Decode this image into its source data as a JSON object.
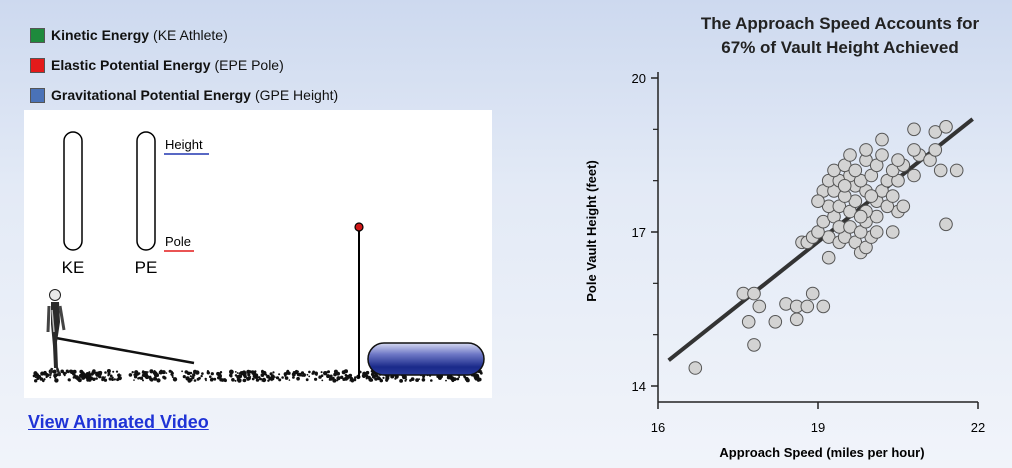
{
  "legend": {
    "items": [
      {
        "bold": "Kinetic Energy",
        "rest": "(KE Athlete)",
        "color": "#1e8a3c"
      },
      {
        "bold": "Elastic Potential Energy",
        "rest": "(EPE Pole)",
        "color": "#e41a1a"
      },
      {
        "bold": "Gravitational Potential Energy",
        "rest": "(GPE Height)",
        "color": "#4a72b8"
      }
    ]
  },
  "animation": {
    "bar_labels": {
      "ke": "KE",
      "pe": "PE"
    },
    "pe_labels": {
      "height": "Height",
      "pole": "Pole"
    },
    "height_line_color": "#2036b0",
    "pole_line_color": "#e41a1a"
  },
  "video_link": "View Animated Video",
  "chart_data": {
    "type": "scatter",
    "title_line1": "The Approach Speed Accounts for",
    "title_line2": "67% of Vault Height Achieved",
    "xlabel": "Approach Speed (miles per hour)",
    "ylabel": "Pole Vault Height (feet)",
    "xlim": [
      16,
      22
    ],
    "ylim": [
      14,
      20
    ],
    "xticks": [
      16,
      19,
      22
    ],
    "yticks": [
      14,
      17,
      20
    ],
    "minor_yticks": [
      15,
      16,
      18,
      19
    ],
    "trendline": {
      "x": [
        16.2,
        21.9
      ],
      "y": [
        14.5,
        19.2
      ]
    },
    "points": [
      {
        "x": 16.7,
        "y": 14.35
      },
      {
        "x": 17.8,
        "y": 14.8
      },
      {
        "x": 17.6,
        "y": 15.8
      },
      {
        "x": 17.8,
        "y": 15.8
      },
      {
        "x": 17.9,
        "y": 15.55
      },
      {
        "x": 17.7,
        "y": 15.25
      },
      {
        "x": 18.2,
        "y": 15.25
      },
      {
        "x": 18.4,
        "y": 15.6
      },
      {
        "x": 18.6,
        "y": 15.55
      },
      {
        "x": 18.8,
        "y": 15.55
      },
      {
        "x": 18.6,
        "y": 15.3
      },
      {
        "x": 18.9,
        "y": 15.8
      },
      {
        "x": 19.1,
        "y": 15.55
      },
      {
        "x": 18.7,
        "y": 16.8
      },
      {
        "x": 18.8,
        "y": 16.8
      },
      {
        "x": 19.2,
        "y": 16.5
      },
      {
        "x": 18.9,
        "y": 16.9
      },
      {
        "x": 19.2,
        "y": 16.9
      },
      {
        "x": 19.0,
        "y": 17.0
      },
      {
        "x": 19.1,
        "y": 17.2
      },
      {
        "x": 19.4,
        "y": 16.8
      },
      {
        "x": 19.5,
        "y": 16.9
      },
      {
        "x": 19.7,
        "y": 16.8
      },
      {
        "x": 19.8,
        "y": 16.6
      },
      {
        "x": 19.9,
        "y": 16.7
      },
      {
        "x": 20.0,
        "y": 16.9
      },
      {
        "x": 20.1,
        "y": 17.0
      },
      {
        "x": 19.3,
        "y": 17.3
      },
      {
        "x": 19.4,
        "y": 17.1
      },
      {
        "x": 19.6,
        "y": 17.1
      },
      {
        "x": 19.8,
        "y": 17.0
      },
      {
        "x": 19.9,
        "y": 17.2
      },
      {
        "x": 20.1,
        "y": 17.3
      },
      {
        "x": 20.4,
        "y": 17.0
      },
      {
        "x": 20.5,
        "y": 17.4
      },
      {
        "x": 19.2,
        "y": 17.5
      },
      {
        "x": 19.4,
        "y": 17.5
      },
      {
        "x": 19.6,
        "y": 17.4
      },
      {
        "x": 19.7,
        "y": 17.6
      },
      {
        "x": 19.9,
        "y": 17.4
      },
      {
        "x": 20.1,
        "y": 17.6
      },
      {
        "x": 20.3,
        "y": 17.5
      },
      {
        "x": 19.1,
        "y": 17.8
      },
      {
        "x": 19.3,
        "y": 17.8
      },
      {
        "x": 19.5,
        "y": 17.7
      },
      {
        "x": 19.7,
        "y": 17.9
      },
      {
        "x": 19.9,
        "y": 17.8
      },
      {
        "x": 20.2,
        "y": 17.8
      },
      {
        "x": 20.4,
        "y": 17.7
      },
      {
        "x": 20.6,
        "y": 17.5
      },
      {
        "x": 19.2,
        "y": 18.0
      },
      {
        "x": 19.4,
        "y": 18.0
      },
      {
        "x": 19.6,
        "y": 18.1
      },
      {
        "x": 19.8,
        "y": 18.0
      },
      {
        "x": 20.0,
        "y": 18.1
      },
      {
        "x": 20.3,
        "y": 18.0
      },
      {
        "x": 20.5,
        "y": 18.0
      },
      {
        "x": 20.8,
        "y": 18.1
      },
      {
        "x": 19.3,
        "y": 18.2
      },
      {
        "x": 19.5,
        "y": 18.3
      },
      {
        "x": 19.7,
        "y": 18.2
      },
      {
        "x": 19.9,
        "y": 18.4
      },
      {
        "x": 20.1,
        "y": 18.3
      },
      {
        "x": 20.4,
        "y": 18.2
      },
      {
        "x": 20.6,
        "y": 18.3
      },
      {
        "x": 19.6,
        "y": 18.5
      },
      {
        "x": 19.9,
        "y": 18.6
      },
      {
        "x": 20.2,
        "y": 18.5
      },
      {
        "x": 20.5,
        "y": 18.4
      },
      {
        "x": 20.9,
        "y": 18.5
      },
      {
        "x": 21.1,
        "y": 18.4
      },
      {
        "x": 20.2,
        "y": 18.8
      },
      {
        "x": 20.8,
        "y": 18.6
      },
      {
        "x": 21.2,
        "y": 18.6
      },
      {
        "x": 21.3,
        "y": 18.2
      },
      {
        "x": 21.6,
        "y": 18.2
      },
      {
        "x": 20.8,
        "y": 19.0
      },
      {
        "x": 21.2,
        "y": 18.95
      },
      {
        "x": 21.4,
        "y": 19.05
      },
      {
        "x": 21.4,
        "y": 17.15
      },
      {
        "x": 19.0,
        "y": 17.6
      },
      {
        "x": 19.5,
        "y": 17.9
      },
      {
        "x": 20.0,
        "y": 17.7
      },
      {
        "x": 19.8,
        "y": 17.3
      }
    ]
  }
}
